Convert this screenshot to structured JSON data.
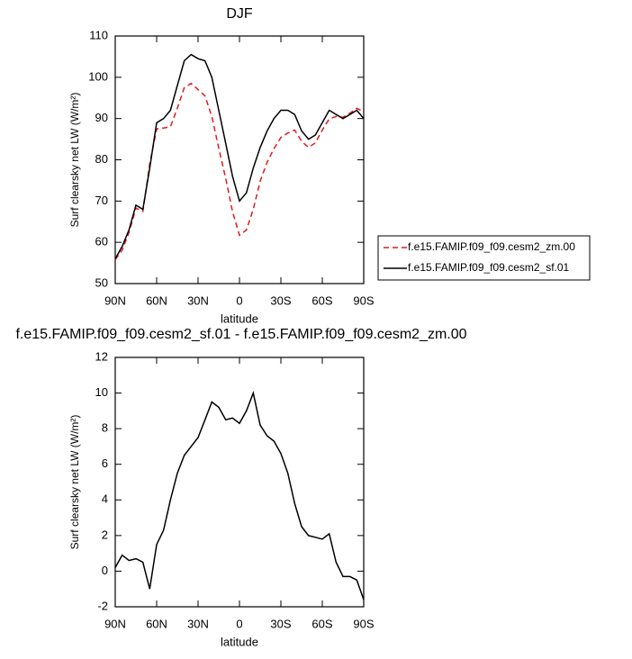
{
  "chart_data": [
    {
      "type": "line",
      "title": "DJF",
      "xlabel": "latitude",
      "ylabel": "Surf clearsky net LW (W/m²)",
      "x": [
        90,
        85,
        80,
        75,
        70,
        65,
        60,
        55,
        50,
        45,
        40,
        35,
        30,
        25,
        20,
        15,
        10,
        5,
        0,
        -5,
        -10,
        -15,
        -20,
        -25,
        -30,
        -35,
        -40,
        -45,
        -50,
        -55,
        -60,
        -65,
        -70,
        -75,
        -80,
        -85,
        -90
      ],
      "xlim": [
        90,
        -90
      ],
      "xticks": [
        {
          "value": 90,
          "label": "90N"
        },
        {
          "value": 60,
          "label": "60N"
        },
        {
          "value": 30,
          "label": "30N"
        },
        0,
        {
          "value": -30,
          "label": "30S"
        },
        {
          "value": -60,
          "label": "60S"
        },
        {
          "value": -90,
          "label": "90S"
        }
      ],
      "ylim": [
        50,
        110
      ],
      "yticks": [
        50,
        60,
        70,
        80,
        90,
        100,
        110
      ],
      "legend": "outside-right",
      "series": [
        {
          "name": "f.e15.FAMIP.f09_f09.cesm2_zm.00",
          "color": "#e31a1c",
          "dashed": true,
          "values": [
            55.8,
            58.1,
            62.4,
            68.3,
            67.5,
            79,
            87.5,
            87.7,
            88,
            92.5,
            97.5,
            98.5,
            97,
            95.5,
            90.5,
            82.8,
            75.5,
            67.4,
            61.7,
            63,
            68,
            74.8,
            79.4,
            82.7,
            85.4,
            86.5,
            87.2,
            84.5,
            83,
            84.1,
            87.2,
            89.9,
            90.5,
            90.3,
            91.3,
            92.5,
            91.6
          ]
        },
        {
          "name": "f.e15.FAMIP.f09_f09.cesm2_sf.01",
          "color": "#000000",
          "dashed": false,
          "values": [
            56,
            59,
            63,
            69,
            68,
            78,
            89,
            90,
            92,
            98,
            104,
            105.5,
            104.5,
            104,
            100,
            92,
            84,
            76,
            70,
            72,
            78,
            83,
            87,
            90,
            92,
            92,
            91,
            87,
            85,
            86,
            89,
            92,
            91,
            90,
            91,
            92,
            90
          ]
        }
      ]
    },
    {
      "type": "line",
      "title": "f.e15.FAMIP.f09_f09.cesm2_sf.01 - f.e15.FAMIP.f09_f09.cesm2_zm.00",
      "xlabel": "latitude",
      "ylabel": "Surf clearsky net LW (W/m²)",
      "x": [
        90,
        85,
        80,
        75,
        70,
        65,
        60,
        55,
        50,
        45,
        40,
        35,
        30,
        25,
        20,
        15,
        10,
        5,
        0,
        -5,
        -10,
        -15,
        -20,
        -25,
        -30,
        -35,
        -40,
        -45,
        -50,
        -55,
        -60,
        -65,
        -70,
        -75,
        -80,
        -85,
        -90
      ],
      "xlim": [
        90,
        -90
      ],
      "xticks": [
        {
          "value": 90,
          "label": "90N"
        },
        {
          "value": 60,
          "label": "60N"
        },
        {
          "value": 30,
          "label": "30N"
        },
        0,
        {
          "value": -30,
          "label": "30S"
        },
        {
          "value": -60,
          "label": "60S"
        },
        {
          "value": -90,
          "label": "90S"
        }
      ],
      "ylim": [
        -2,
        12
      ],
      "yticks": [
        -2,
        0,
        2,
        4,
        6,
        8,
        10,
        12
      ],
      "series": [
        {
          "color": "#000000",
          "dashed": false,
          "values": [
            0.2,
            0.9,
            0.6,
            0.7,
            0.5,
            -1.0,
            1.5,
            2.3,
            4,
            5.5,
            6.5,
            7,
            7.5,
            8.5,
            9.5,
            9.2,
            8.5,
            8.6,
            8.3,
            9,
            10,
            8.2,
            7.6,
            7.3,
            6.6,
            5.5,
            3.8,
            2.5,
            2.0,
            1.9,
            1.8,
            2.1,
            0.5,
            -0.3,
            -0.3,
            -0.5,
            -1.6
          ]
        }
      ]
    }
  ]
}
